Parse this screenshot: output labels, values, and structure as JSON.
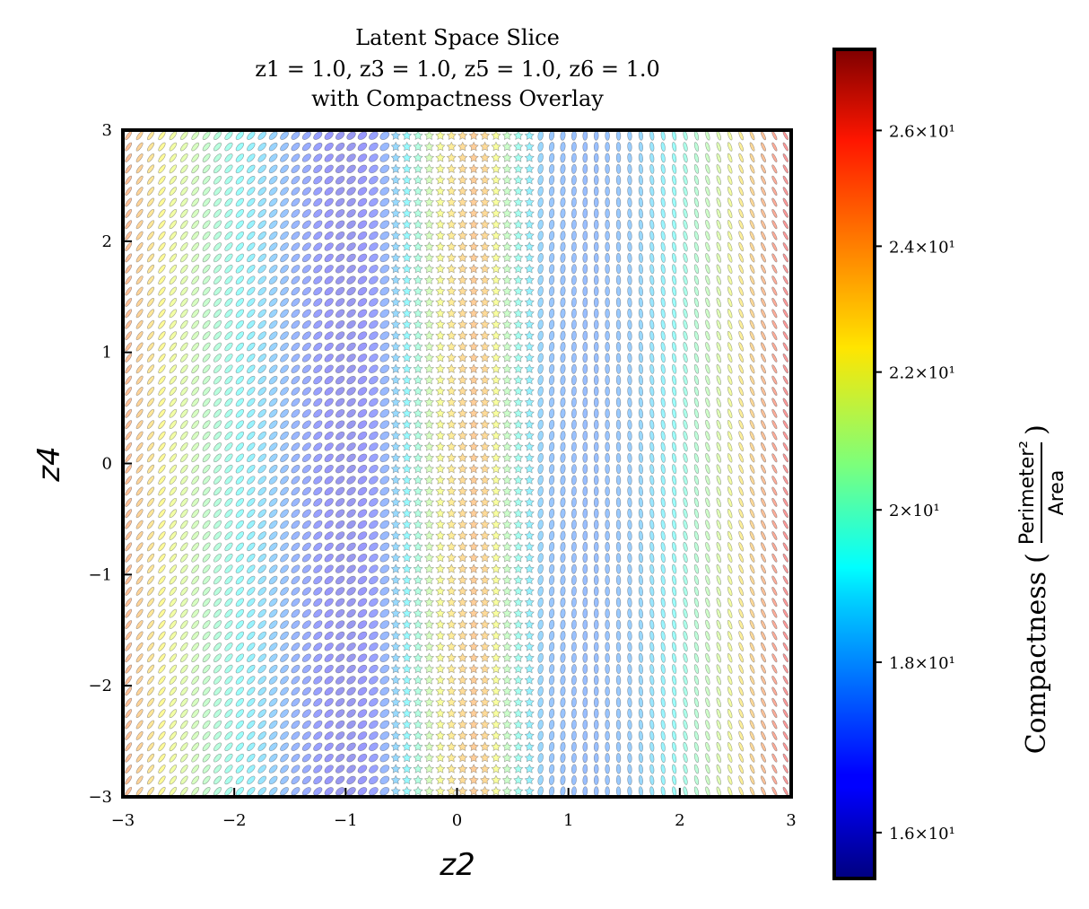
{
  "chart_data": {
    "type": "scatter",
    "title_lines": [
      "Latent Space Slice",
      "z1 = 1.0, z3 = 1.0, z5 = 1.0, z6 = 1.0",
      "with Compactness Overlay"
    ],
    "xlabel": "z2",
    "ylabel": "z4",
    "xlim": [
      -3,
      3
    ],
    "ylim": [
      -3,
      3
    ],
    "x_ticks": [
      -3,
      -2,
      -1,
      0,
      1,
      2,
      3
    ],
    "y_ticks": [
      -3,
      -2,
      -1,
      0,
      1,
      2,
      3
    ],
    "x_tick_labels": [
      "−3",
      "−2",
      "−1",
      "0",
      "1",
      "2",
      "3"
    ],
    "y_tick_labels": [
      "−3",
      "−2",
      "−1",
      "0",
      "1",
      "2",
      "3"
    ],
    "grid_resolution": 60,
    "grid": false,
    "colormap": "jet",
    "colorbar": {
      "label": "Compactness",
      "label_fraction_numerator": "Perimeter²",
      "label_fraction_denominator": "Area",
      "scale": "log",
      "range": [
        15.5,
        27.5
      ],
      "ticks": [
        16,
        18,
        20,
        22,
        24,
        26
      ],
      "tick_labels": [
        "1.6×10¹",
        "1.8×10¹",
        "2×10¹",
        "2.2×10¹",
        "2.4×10¹",
        "2.6×10¹"
      ]
    },
    "compactness_profile": {
      "description_x": [
        -3.0,
        -2.6,
        -2.0,
        -1.5,
        -1.0,
        -0.7,
        -0.4,
        -0.1,
        0.2,
        0.5,
        0.8,
        1.2,
        1.6,
        2.0,
        2.4,
        2.8,
        3.0
      ],
      "compactness": [
        24.5,
        22.0,
        19.5,
        17.5,
        16.2,
        17.0,
        19.5,
        22.5,
        24.0,
        20.0,
        17.8,
        17.5,
        18.0,
        19.5,
        21.5,
        24.5,
        26.0
      ]
    }
  }
}
